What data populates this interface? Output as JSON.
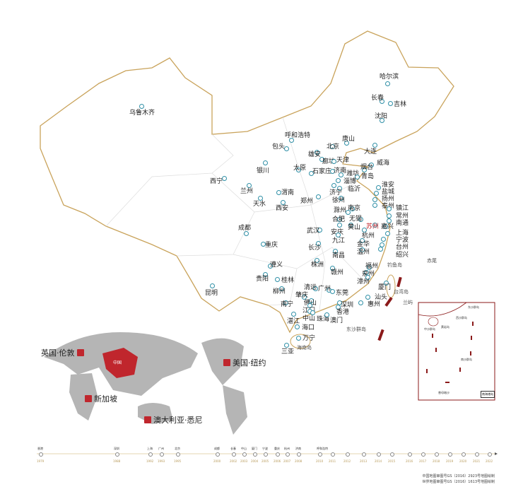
{
  "colors": {
    "border": "#c9a35b",
    "pin": "#2f8fa6",
    "accent": "#c0262d",
    "world": "#b5b5b5"
  },
  "map": {
    "cities": [
      "乌鲁木齐",
      "哈尔滨",
      "长春",
      "吉林",
      "沈阳",
      "大连",
      "威海",
      "呼和浩特",
      "包头",
      "北京",
      "唐山",
      "雄安",
      "廊坊",
      "天津",
      "烟台",
      "太原",
      "石家庄",
      "济南",
      "潍坊",
      "青岛",
      "淄博",
      "临沂",
      "银川",
      "西宁",
      "兰州",
      "渭南",
      "天水",
      "西安",
      "郑州",
      "济宁",
      "徐州",
      "淮安",
      "盐城",
      "扬州",
      "泰州",
      "镇江",
      "常州",
      "南通",
      "南京",
      "滁州",
      "无锡",
      "合肥",
      "黄山",
      "苏州",
      "嘉兴",
      "上海",
      "宁波",
      "台州",
      "绍兴",
      "成都",
      "武汉",
      "安庆",
      "杭州",
      "九江",
      "金华",
      "温州",
      "重庆",
      "长沙",
      "南昌",
      "株洲",
      "遵义",
      "福州",
      "泉州",
      "赣州",
      "漳州",
      "贵阳",
      "桂林",
      "昆明",
      "柳州",
      "清远",
      "广州",
      "肇庆",
      "东莞",
      "厦门",
      "佛山",
      "汕头",
      "江门",
      "深圳",
      "惠州",
      "南宁",
      "中山",
      "珠海",
      "香港",
      "澳门",
      "湛江",
      "海口",
      "万宁",
      "三亚"
    ],
    "places": [
      "钓鱼岛",
      "赤尾",
      "台湾岛",
      "兰屿",
      "东沙群岛",
      "海南岛"
    ],
    "inset": {
      "title": "南海诸岛",
      "labels": [
        "东沙群岛",
        "西沙群岛",
        "中沙群岛",
        "黄岩岛",
        "南沙群岛",
        "曾母暗沙"
      ]
    }
  },
  "world": {
    "locations": [
      "英国·伦敦",
      "美国·纽约",
      "新加坡",
      "澳大利亚·悉尼"
    ],
    "china_label": "中国"
  },
  "timeline": {
    "years": [
      "1979",
      "1988",
      "1992",
      "1993",
      "1995",
      "2000",
      "2002",
      "2003",
      "2004",
      "2005",
      "2006",
      "2007",
      "2008",
      "2010",
      "2011",
      "2012",
      "2013",
      "2014",
      "2015",
      "2016",
      "2017",
      "2018",
      "2019",
      "2020",
      "2021",
      "2022"
    ],
    "cities": [
      "香港",
      "深圳",
      "上海",
      "广州",
      "北京",
      "成都",
      "长春",
      "中山",
      "厦门",
      "宁波",
      "重庆",
      "杭州",
      "济南",
      "呼和浩特",
      "",
      "",
      "",
      "",
      "",
      "",
      "",
      "",
      "",
      "",
      "",
      ""
    ]
  },
  "notes": [
    "中国地图审图号GS（2016）2923号地图绘制",
    "世界地图审图号GS（2016）1613号地图绘制"
  ]
}
